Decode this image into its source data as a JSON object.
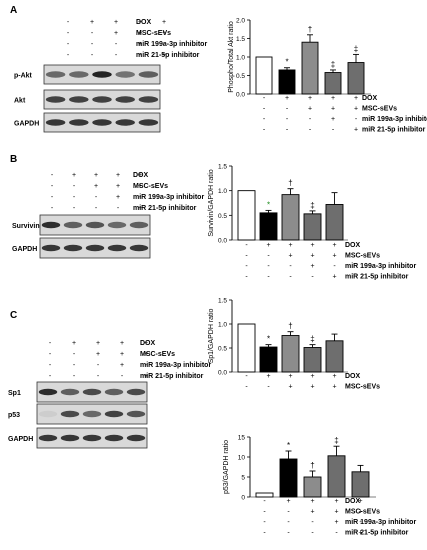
{
  "panels": [
    {
      "letter": "A",
      "blot": {
        "rows": [
          "DOX",
          "MSC-sEVs",
          "miR 199a-3p inhibitor",
          "miR 21-5p inhibitor"
        ],
        "signs": [
          [
            "-",
            "+",
            "+",
            "+",
            "+"
          ],
          [
            "-",
            "-",
            "+",
            "+",
            "+"
          ],
          [
            "-",
            "-",
            "-",
            "+",
            "-"
          ],
          [
            "-",
            "-",
            "-",
            "-",
            "+"
          ]
        ],
        "bands": [
          {
            "label": "p-Akt",
            "intensity": [
              0.55,
              0.55,
              0.9,
              0.5,
              0.6
            ]
          },
          {
            "label": "Akt",
            "intensity": [
              0.75,
              0.75,
              0.75,
              0.75,
              0.75
            ]
          },
          {
            "label": "GAPDH",
            "intensity": [
              0.8,
              0.8,
              0.8,
              0.8,
              0.8
            ]
          }
        ]
      }
    },
    {
      "letter": "B",
      "blot": {
        "rows": [
          "DOX",
          "MSC-sEVs",
          "miR 199a-3p inhibitor",
          "miR 21-5p inhibitor"
        ],
        "signs": [
          [
            "-",
            "+",
            "+",
            "+",
            "+"
          ],
          [
            "-",
            "-",
            "+",
            "+",
            "+"
          ],
          [
            "-",
            "-",
            "-",
            "+",
            "-"
          ],
          [
            "-",
            "-",
            "-",
            "-",
            "+"
          ]
        ],
        "bands": [
          {
            "label": "Survivin",
            "intensity": [
              0.85,
              0.6,
              0.65,
              0.55,
              0.6
            ]
          },
          {
            "label": "GAPDH",
            "intensity": [
              0.8,
              0.8,
              0.8,
              0.8,
              0.8
            ]
          }
        ]
      }
    },
    {
      "letter": "C",
      "blot": {
        "rows": [
          "DOX",
          "MSC-sEVs",
          "miR 199a-3p inhibitor",
          "miR 21-5p inhibitor"
        ],
        "signs": [
          [
            "-",
            "+",
            "+",
            "+",
            "+"
          ],
          [
            "-",
            "-",
            "+",
            "+",
            "+"
          ],
          [
            "-",
            "-",
            "-",
            "+",
            "-"
          ],
          [
            "-",
            "-",
            "-",
            "-",
            "+"
          ]
        ],
        "bands": [
          {
            "label": "Sp1",
            "intensity": [
              0.85,
              0.6,
              0.7,
              0.6,
              0.7
            ]
          },
          {
            "label": "p53",
            "intensity": [
              0.05,
              0.7,
              0.55,
              0.75,
              0.65
            ]
          },
          {
            "label": "GAPDH",
            "intensity": [
              0.8,
              0.8,
              0.8,
              0.8,
              0.8
            ]
          }
        ]
      }
    }
  ],
  "chart_data": [
    {
      "type": "bar",
      "ylabel": "Phospho/Total Akt ratio",
      "ylim": [
        0,
        2.0
      ],
      "yticks": [
        "0.0",
        "0.5",
        "1.0",
        "1.5",
        "2.0"
      ],
      "values": [
        1.0,
        0.65,
        1.4,
        0.58,
        0.85
      ],
      "errors": [
        0,
        0.06,
        0.2,
        0.07,
        0.22
      ],
      "marks": [
        "",
        "*",
        "†",
        "‡",
        "‡"
      ],
      "fills": [
        "#ffffff",
        "#000000",
        "#8c8c8c",
        "#6e6e6e",
        "#6e6e6e"
      ],
      "rows": [
        "DOX",
        "MSC-sEVs",
        "miR 199a-3p inhibitor",
        "miR 21-5p inhibitor"
      ],
      "signs": [
        [
          "-",
          "+",
          "+",
          "+",
          "+"
        ],
        [
          "-",
          "-",
          "+",
          "+",
          "+"
        ],
        [
          "-",
          "-",
          "-",
          "+",
          "-"
        ],
        [
          "-",
          "-",
          "-",
          "-",
          "+"
        ]
      ]
    },
    {
      "type": "bar",
      "ylabel": "Survivin/GAPDH ratio",
      "ylim": [
        0,
        1.5
      ],
      "yticks": [
        "0.0",
        "0.5",
        "1.0",
        "1.5"
      ],
      "values": [
        1.0,
        0.55,
        0.92,
        0.53,
        0.72
      ],
      "errors": [
        0,
        0.05,
        0.12,
        0.06,
        0.24
      ],
      "marks": [
        "",
        "*",
        "†",
        "‡",
        ""
      ],
      "fills": [
        "#ffffff",
        "#000000",
        "#8c8c8c",
        "#6e6e6e",
        "#6e6e6e"
      ],
      "rows": [
        "DOX",
        "MSC-sEVs",
        "miR 199a-3p inhibitor",
        "miR 21-5p inhibitor"
      ],
      "signs": [
        [
          "-",
          "+",
          "+",
          "+",
          "+"
        ],
        [
          "-",
          "-",
          "+",
          "+",
          "+"
        ],
        [
          "-",
          "-",
          "-",
          "+",
          "-"
        ],
        [
          "-",
          "-",
          "-",
          "-",
          "+"
        ]
      ]
    },
    {
      "type": "bar",
      "ylabel": "Sp1/GAPDH ratio",
      "ylim": [
        0,
        1.5
      ],
      "yticks": [
        "0.0",
        "0.5",
        "1.0",
        "1.5"
      ],
      "values": [
        1.0,
        0.52,
        0.76,
        0.51,
        0.65
      ],
      "errors": [
        0,
        0.05,
        0.08,
        0.06,
        0.14
      ],
      "marks": [
        "",
        "*",
        "†",
        "‡",
        ""
      ],
      "fills": [
        "#ffffff",
        "#000000",
        "#8c8c8c",
        "#6e6e6e",
        "#6e6e6e"
      ],
      "rows": [
        "DOX",
        "MSC-sEVs"
      ],
      "signs": [
        [
          "-",
          "+",
          "+",
          "+",
          "+"
        ],
        [
          "-",
          "-",
          "+",
          "+",
          "+"
        ]
      ]
    },
    {
      "type": "bar",
      "ylabel": "p53/GAPDH ratio",
      "ylim": [
        0,
        15
      ],
      "yticks": [
        "0",
        "5",
        "10",
        "15"
      ],
      "values": [
        1.0,
        9.5,
        5.0,
        10.3,
        6.3
      ],
      "errors": [
        0,
        2.0,
        1.5,
        2.4,
        1.6
      ],
      "marks": [
        "",
        "*",
        "†",
        "‡",
        ""
      ],
      "fills": [
        "#ffffff",
        "#000000",
        "#8c8c8c",
        "#6e6e6e",
        "#6e6e6e"
      ],
      "rows": [
        "DOX",
        "MSC-sEVs",
        "miR 199a-3p inhibitor",
        "miR 21-5p inhibitor"
      ],
      "signs": [
        [
          "-",
          "+",
          "+",
          "+",
          "+"
        ],
        [
          "-",
          "-",
          "+",
          "+",
          "+"
        ],
        [
          "-",
          "-",
          "-",
          "+",
          "-"
        ],
        [
          "-",
          "-",
          "-",
          "-",
          "+"
        ]
      ]
    }
  ]
}
